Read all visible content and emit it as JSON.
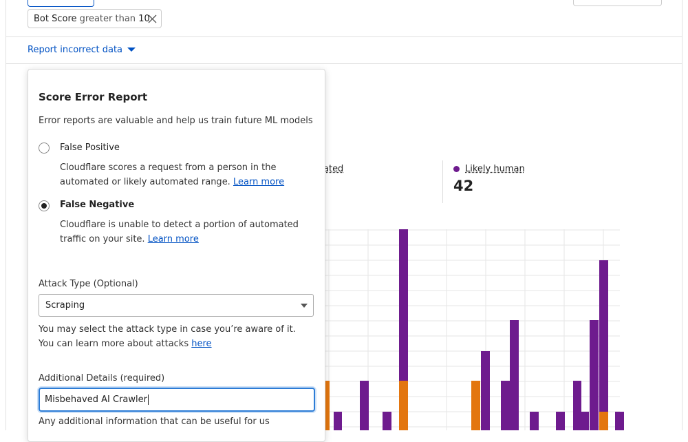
{
  "filter_chip": {
    "field": "Bot Score",
    "operator": "greater than",
    "value": "10"
  },
  "report_link": "Report incorrect data",
  "background": {
    "truncated_label": "ated",
    "human_label": "Likely human",
    "human_value": "42"
  },
  "dialog": {
    "title": "Score Error Report",
    "subtitle": "Error reports are valuable and help us train future ML models",
    "options": [
      {
        "label": "False Positive",
        "description": "Cloudflare scores a request from a person in the automated or likely automated range.",
        "link": "Learn more",
        "selected": false
      },
      {
        "label": "False Negative",
        "description": "Cloudflare is unable to detect a portion of automated traffic on your site.",
        "link": "Learn more",
        "selected": true
      }
    ],
    "attack_type": {
      "label": "Attack Type (Optional)",
      "value": "Scraping",
      "help": "You may select the attack type in case you’re aware of it. You can learn more about attacks",
      "link": "here"
    },
    "details": {
      "label": "Additional Details (required)",
      "value": "Misbehaved AI Crawler",
      "help": "Any additional information that can be useful for us"
    }
  }
}
